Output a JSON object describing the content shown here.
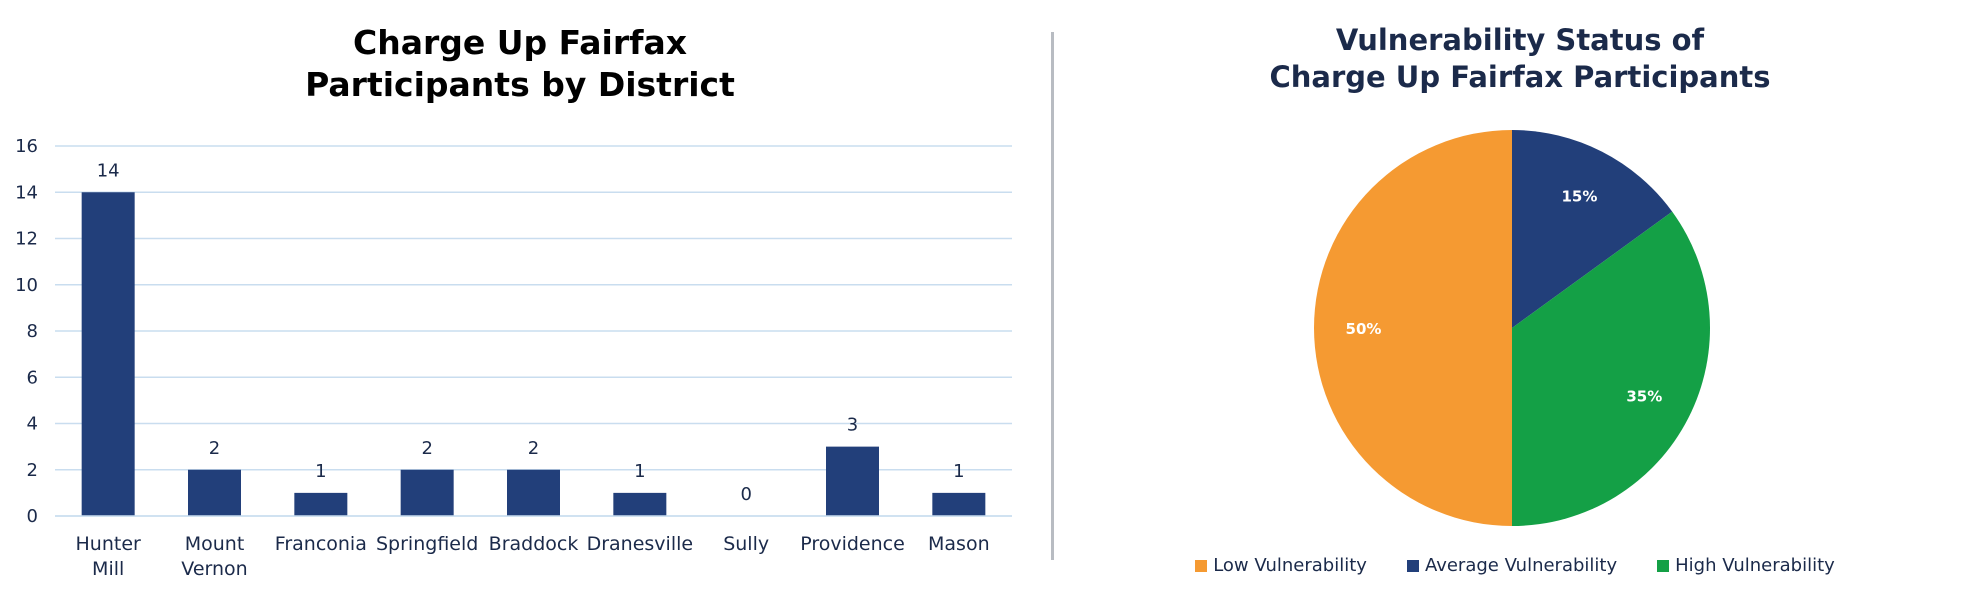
{
  "chart_data": [
    {
      "type": "bar",
      "title_line1": "Charge Up Fairfax",
      "title_line2": "Participants by District",
      "categories": [
        "Hunter Mill",
        "Mount Vernon",
        "Franconia",
        "Springfield",
        "Braddock",
        "Dranesville",
        "Sully",
        "Providence",
        "Mason"
      ],
      "values": [
        14,
        2,
        1,
        2,
        2,
        1,
        0,
        3,
        1
      ],
      "ylim": [
        0,
        16
      ],
      "yticks": [
        0,
        2,
        4,
        6,
        8,
        10,
        12,
        14,
        16
      ],
      "grid": true,
      "data_labels": true,
      "bar_color": "#223f7a",
      "grid_color": "#c9ddef"
    },
    {
      "type": "pie",
      "title_line1": "Vulnerability Status of",
      "title_line2": "Charge Up Fairfax Participants",
      "labels": [
        "Average Vulnerability",
        "High Vulnerability",
        "Low Vulnerability"
      ],
      "values": [
        15,
        35,
        50
      ],
      "value_labels": [
        "15%",
        "35%",
        "50%"
      ],
      "colors": [
        "#223f7a",
        "#14a046",
        "#f59a32"
      ],
      "legend_order": [
        "Low Vulnerability",
        "Average Vulnerability",
        "High Vulnerability"
      ],
      "legend_colors": [
        "#f59a32",
        "#223f7a",
        "#14a046"
      ],
      "legend_placement": "bottom"
    }
  ]
}
